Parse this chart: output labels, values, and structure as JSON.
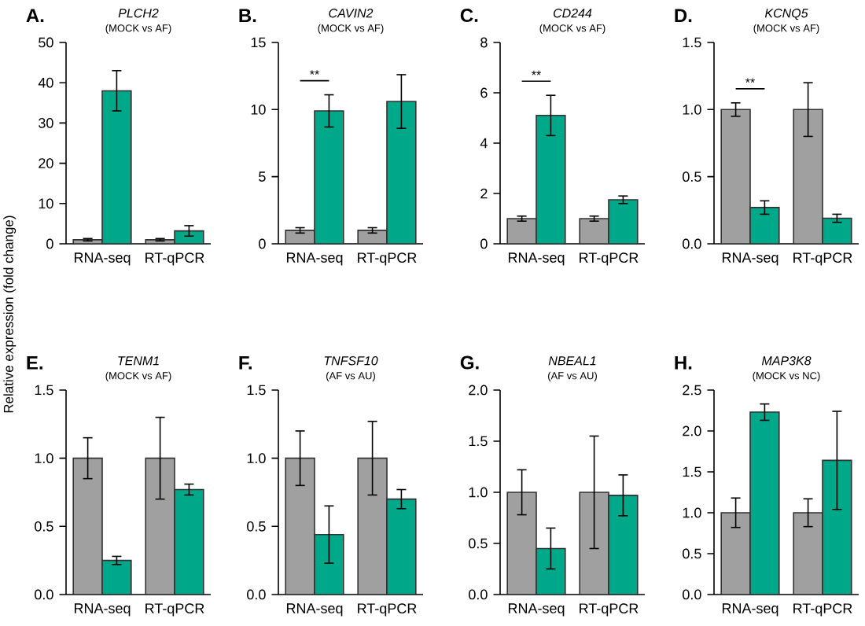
{
  "chart_data": [
    {
      "type": "bar",
      "title": "PLCH2",
      "subtitle": "(MOCK vs AF)",
      "ylabel": "Relative expression (fold change)",
      "annotations": [
        "A."
      ],
      "categories": [
        "RNA-seq",
        "RT-qPCR"
      ],
      "ylim": [
        0,
        50
      ],
      "yticks": [
        0,
        10,
        20,
        30,
        40,
        50
      ],
      "series": [
        {
          "color": "#a0a0a0",
          "values": [
            1,
            1
          ],
          "errors": [
            0.3,
            0.3
          ]
        },
        {
          "color": "#00a88a",
          "values": [
            38,
            3.2
          ],
          "errors": [
            5,
            1.3
          ]
        }
      ]
    },
    {
      "type": "bar",
      "title": "CAVIN2",
      "subtitle": "(MOCK vs AF)",
      "annotations": [
        "B.",
        "**"
      ],
      "categories": [
        "RNA-seq",
        "RT-qPCR"
      ],
      "ylim": [
        0,
        15
      ],
      "yticks": [
        0,
        5,
        10,
        15
      ],
      "series": [
        {
          "color": "#a0a0a0",
          "values": [
            1,
            1
          ],
          "errors": [
            0.2,
            0.2
          ]
        },
        {
          "color": "#00a88a",
          "values": [
            9.9,
            10.6
          ],
          "errors": [
            1.2,
            2
          ]
        }
      ]
    },
    {
      "type": "bar",
      "title": "CD244",
      "subtitle": "(MOCK vs AF)",
      "annotations": [
        "C.",
        "**"
      ],
      "categories": [
        "RNA-seq",
        "RT-qPCR"
      ],
      "ylim": [
        0,
        8
      ],
      "yticks": [
        0,
        2,
        4,
        6,
        8
      ],
      "series": [
        {
          "color": "#a0a0a0",
          "values": [
            1,
            1
          ],
          "errors": [
            0.1,
            0.1
          ]
        },
        {
          "color": "#00a88a",
          "values": [
            5.1,
            1.75
          ],
          "errors": [
            0.8,
            0.15
          ]
        }
      ]
    },
    {
      "type": "bar",
      "title": "KCNQ5",
      "subtitle": "(MOCK vs AF)",
      "annotations": [
        "D.",
        "**"
      ],
      "categories": [
        "RNA-seq",
        "RT-qPCR"
      ],
      "ylim": [
        0,
        1.5
      ],
      "yticks": [
        {
          "value": 0,
          "label": "0.0"
        },
        {
          "value": 0.5,
          "label": "0.5"
        },
        {
          "value": 1,
          "label": "1.0"
        },
        {
          "value": 1.5,
          "label": "1.5"
        }
      ],
      "series": [
        {
          "color": "#a0a0a0",
          "values": [
            1,
            1
          ],
          "errors": [
            0.05,
            0.2
          ]
        },
        {
          "color": "#00a88a",
          "values": [
            0.27,
            0.19
          ],
          "errors": [
            0.05,
            0.03
          ]
        }
      ]
    },
    {
      "type": "bar",
      "title": "TENM1",
      "subtitle": "(MOCK vs AF)",
      "annotations": [
        "E."
      ],
      "categories": [
        "RNA-seq",
        "RT-qPCR"
      ],
      "ylim": [
        0,
        1.5
      ],
      "yticks": [
        {
          "value": 0,
          "label": "0.0"
        },
        {
          "value": 0.5,
          "label": "0.5"
        },
        {
          "value": 1,
          "label": "1.0"
        },
        {
          "value": 1.5,
          "label": "1.5"
        }
      ],
      "series": [
        {
          "color": "#a0a0a0",
          "values": [
            1,
            1
          ],
          "errors": [
            0.15,
            0.3
          ]
        },
        {
          "color": "#00a88a",
          "values": [
            0.25,
            0.77
          ],
          "errors": [
            0.03,
            0.04
          ]
        }
      ]
    },
    {
      "type": "bar",
      "title": "TNFSF10",
      "subtitle": "(AF vs AU)",
      "annotations": [
        "F."
      ],
      "categories": [
        "RNA-seq",
        "RT-qPCR"
      ],
      "ylim": [
        0,
        1.5
      ],
      "yticks": [
        {
          "value": 0,
          "label": "0.0"
        },
        {
          "value": 0.5,
          "label": "0.5"
        },
        {
          "value": 1,
          "label": "1.0"
        },
        {
          "value": 1.5,
          "label": "1.5"
        }
      ],
      "series": [
        {
          "color": "#a0a0a0",
          "values": [
            1,
            1
          ],
          "errors": [
            0.2,
            0.27
          ]
        },
        {
          "color": "#00a88a",
          "values": [
            0.44,
            0.7
          ],
          "errors": [
            0.21,
            0.07
          ]
        }
      ]
    },
    {
      "type": "bar",
      "title": "NBEAL1",
      "subtitle": "(AF vs AU)",
      "annotations": [
        "G."
      ],
      "categories": [
        "RNA-seq",
        "RT-qPCR"
      ],
      "ylim": [
        0,
        2
      ],
      "yticks": [
        {
          "value": 0,
          "label": "0.0"
        },
        {
          "value": 0.5,
          "label": "0.5"
        },
        {
          "value": 1,
          "label": "1.0"
        },
        {
          "value": 1.5,
          "label": "1.5"
        },
        {
          "value": 2,
          "label": "2.0"
        }
      ],
      "series": [
        {
          "color": "#a0a0a0",
          "values": [
            1,
            1
          ],
          "errors": [
            0.22,
            0.55
          ]
        },
        {
          "color": "#00a88a",
          "values": [
            0.45,
            0.97
          ],
          "errors": [
            0.2,
            0.2
          ]
        }
      ]
    },
    {
      "type": "bar",
      "title": "MAP3K8",
      "subtitle": "(MOCK vs NC)",
      "annotations": [
        "H."
      ],
      "categories": [
        "RNA-seq",
        "RT-qPCR"
      ],
      "ylim": [
        0,
        2.5
      ],
      "yticks": [
        {
          "value": 0,
          "label": "0.0"
        },
        {
          "value": 0.5,
          "label": "0.5"
        },
        {
          "value": 1,
          "label": "1.0"
        },
        {
          "value": 1.5,
          "label": "1.5"
        },
        {
          "value": 2,
          "label": "2.0"
        },
        {
          "value": 2.5,
          "label": "2.5"
        }
      ],
      "series": [
        {
          "color": "#a0a0a0",
          "values": [
            1,
            1
          ],
          "errors": [
            0.18,
            0.17
          ]
        },
        {
          "color": "#00a88a",
          "values": [
            2.23,
            1.64
          ],
          "errors": [
            0.1,
            0.6
          ]
        }
      ]
    }
  ]
}
